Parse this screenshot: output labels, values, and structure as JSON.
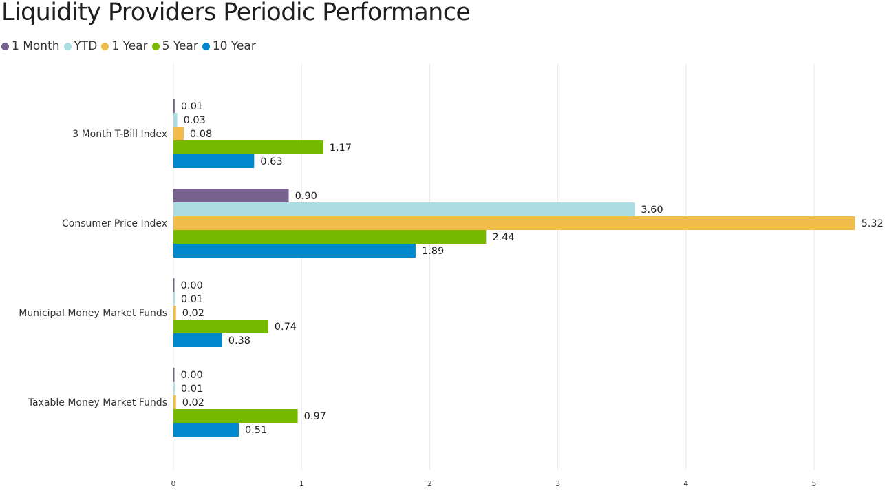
{
  "chart_data": {
    "type": "bar",
    "orientation": "horizontal",
    "title": "Liquidity Providers Periodic Performance",
    "categories": [
      "3 Month T-Bill Index",
      "Consumer Price Index",
      "Municipal Money Market Funds",
      "Taxable Money Market Funds"
    ],
    "series": [
      {
        "name": "1 Month",
        "color": "#77628f",
        "values": [
          0.01,
          0.9,
          0.0,
          0.0
        ],
        "labels": [
          "0.01",
          "0.90",
          "0.00",
          "0.00"
        ]
      },
      {
        "name": "YTD",
        "color": "#abdde3",
        "values": [
          0.03,
          3.6,
          0.01,
          0.01
        ],
        "labels": [
          "0.03",
          "3.60",
          "0.01",
          "0.01"
        ]
      },
      {
        "name": "1 Year",
        "color": "#f0bd4c",
        "values": [
          0.08,
          5.32,
          0.02,
          0.02
        ],
        "labels": [
          "0.08",
          "5.32",
          "0.02",
          "0.02"
        ]
      },
      {
        "name": "5 Year",
        "color": "#76b900",
        "values": [
          1.17,
          2.44,
          0.74,
          0.97
        ],
        "labels": [
          "1.17",
          "2.44",
          "0.74",
          "0.97"
        ]
      },
      {
        "name": "10 Year",
        "color": "#0087cd",
        "values": [
          0.63,
          1.89,
          0.38,
          0.51
        ],
        "labels": [
          "0.63",
          "1.89",
          "0.38",
          "0.51"
        ]
      }
    ],
    "xticks": [
      "0",
      "1",
      "2",
      "3",
      "4",
      "5"
    ],
    "xlim": [
      0,
      5.32
    ],
    "grid": true,
    "legend_position": "top-left",
    "xlabel": "",
    "ylabel": ""
  }
}
